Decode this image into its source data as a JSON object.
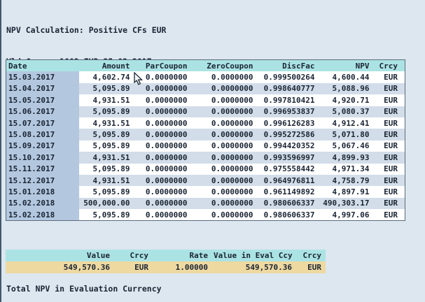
{
  "header": {
    "title_line1": "NPV Calculation: Positive CFs EUR",
    "title_line2": "Yld Curve: 1002 EUR 25.02.2017"
  },
  "cashflow_table": {
    "columns": [
      "Date",
      "Amount",
      "ParCoupon",
      "ZeroCoupon",
      "DiscFac",
      "NPV",
      "Crcy"
    ],
    "rows": [
      [
        "15.03.2017",
        "4,602.74",
        "0.0000000",
        "0.0000000",
        "0.999500264",
        "4,600.44",
        "EUR"
      ],
      [
        "15.04.2017",
        "5,095.89",
        "0.0000000",
        "0.0000000",
        "0.998640777",
        "5,088.96",
        "EUR"
      ],
      [
        "15.05.2017",
        "4,931.51",
        "0.0000000",
        "0.0000000",
        "0.997810421",
        "4,920.71",
        "EUR"
      ],
      [
        "15.06.2017",
        "5,095.89",
        "0.0000000",
        "0.0000000",
        "0.996953837",
        "5,080.37",
        "EUR"
      ],
      [
        "15.07.2017",
        "4,931.51",
        "0.0000000",
        "0.0000000",
        "0.996126283",
        "4,912.41",
        "EUR"
      ],
      [
        "15.08.2017",
        "5,095.89",
        "0.0000000",
        "0.0000000",
        "0.995272586",
        "5,071.80",
        "EUR"
      ],
      [
        "15.09.2017",
        "5,095.89",
        "0.0000000",
        "0.0000000",
        "0.994420352",
        "5,067.46",
        "EUR"
      ],
      [
        "15.10.2017",
        "4,931.51",
        "0.0000000",
        "0.0000000",
        "0.993596997",
        "4,899.93",
        "EUR"
      ],
      [
        "15.11.2017",
        "5,095.89",
        "0.0000000",
        "0.0000000",
        "0.975558442",
        "4,971.34",
        "EUR"
      ],
      [
        "15.12.2017",
        "4,931.51",
        "0.0000000",
        "0.0000000",
        "0.964976811",
        "4,758.79",
        "EUR"
      ],
      [
        "15.01.2018",
        "5,095.89",
        "0.0000000",
        "0.0000000",
        "0.961149892",
        "4,897.91",
        "EUR"
      ],
      [
        "15.02.2018",
        "500,000.00",
        "0.0000000",
        "0.0000000",
        "0.980606337",
        "490,303.17",
        "EUR"
      ],
      [
        "15.02.2018",
        "5,095.89",
        "0.0000000",
        "0.0000000",
        "0.980606337",
        "4,997.06",
        "EUR"
      ]
    ]
  },
  "summary_table": {
    "columns": [
      "Value",
      "Crcy",
      "Rate",
      "Value in Eval Ccy",
      "Crcy"
    ],
    "row": [
      "549,570.36",
      "EUR",
      "1.00000",
      "549,570.36",
      "EUR"
    ]
  },
  "footer": {
    "label": "Total NPV in Evaluation Currency"
  },
  "icons": {
    "mouse_cursor": "arrow-pointer"
  },
  "colors": {
    "background": "#dce7f0",
    "table_header_bg": "#abe3e4",
    "date_cell_bg": "#b3c8df",
    "row_alt_bg": "#d2dde9",
    "summary_value_bg": "#eed9a1",
    "border": "#5c6b7a",
    "text": "#1a2433"
  }
}
